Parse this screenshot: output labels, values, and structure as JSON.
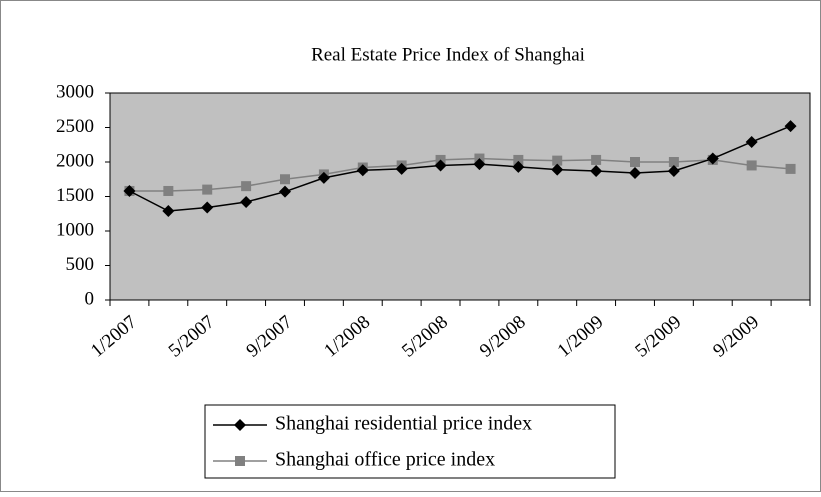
{
  "chart_data": {
    "type": "line",
    "title": "Real Estate Price Index of Shanghai",
    "categories": [
      "1/2007",
      null,
      "5/2007",
      null,
      "9/2007",
      null,
      "1/2008",
      null,
      "5/2008",
      null,
      "9/2008",
      null,
      "1/2009",
      null,
      "5/2009",
      null,
      "9/2009",
      null
    ],
    "series": [
      {
        "name": "Shanghai residential price index",
        "color": "#000000",
        "marker": "diamond",
        "values": [
          1580,
          1290,
          1340,
          1420,
          1570,
          1770,
          1880,
          1900,
          1950,
          1970,
          1930,
          1890,
          1870,
          1840,
          1870,
          2050,
          2290,
          2520
        ]
      },
      {
        "name": "Shanghai office price index",
        "color": "#808080",
        "marker": "square",
        "values": [
          1580,
          1580,
          1600,
          1650,
          1750,
          1820,
          1920,
          1950,
          2030,
          2050,
          2030,
          2020,
          2030,
          2000,
          2000,
          2030,
          1950,
          1900
        ]
      }
    ],
    "ylim": [
      0,
      3000
    ],
    "yticks": [
      0,
      500,
      1000,
      1500,
      2000,
      2500,
      3000
    ],
    "plot_background": "#c0c0c0",
    "legend": "bottom"
  }
}
